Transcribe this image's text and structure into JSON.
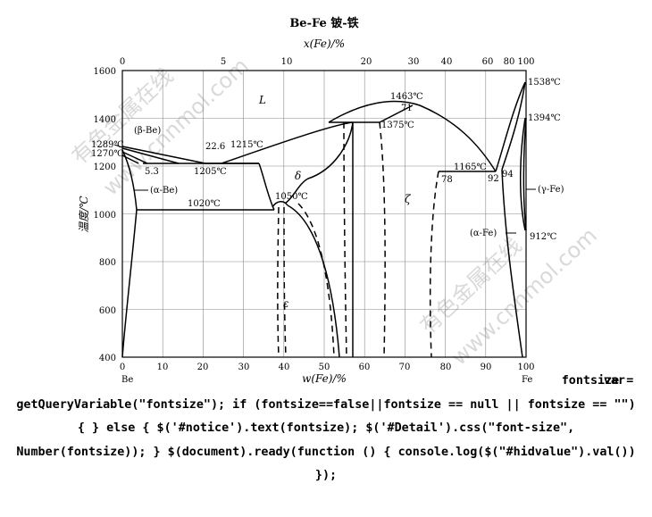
{
  "figure": {
    "title": "Be-Fe  铍-铁",
    "top_axis_title": "x(Fe)/%",
    "bottom_axis_title": "w(Fe)/%",
    "y_axis_title": "温度/℃",
    "left_end_label": "Be",
    "right_end_label": "Fe",
    "y_ticks": [
      "400",
      "600",
      "800",
      "1000",
      "1200",
      "1400",
      "1600"
    ],
    "bottom_ticks": [
      "0",
      "10",
      "20",
      "30",
      "40",
      "50",
      "60",
      "70",
      "80",
      "90",
      "100"
    ],
    "top_ticks": [
      "0",
      "5",
      "10",
      "20",
      "30",
      "40",
      "60",
      "80",
      "100"
    ],
    "phase_labels": {
      "liquid": "L",
      "beta_be": "(β-Be)",
      "alpha_be": "(α-Be)",
      "delta": "δ",
      "epsilon": "ε",
      "zeta": "ζ",
      "gamma_fe": "(γ-Fe)",
      "alpha_fe": "(α-Fe)"
    },
    "annotations": {
      "t1289": "1289℃",
      "t1270": "1270℃",
      "c5_3": "5.3",
      "c22_6": "22.6",
      "t1215": "1215℃",
      "t1205": "1205℃",
      "t1020": "1020℃",
      "t1050": "1050℃",
      "t1463": "1463℃",
      "c71": "71",
      "t1375": "1375℃",
      "t1165": "1165℃",
      "c78": "78",
      "c92": "92",
      "c94": "94",
      "t1538": "1538℃",
      "t1394": "1394℃",
      "t912": "912℃"
    },
    "watermark": {
      "text_1": "有色金属在线",
      "text_2": "www.cnnmol.com"
    }
  },
  "code": {
    "trailing": "var",
    "text": "fontsize = getQueryVariable(\"fontsize\"); if (fontsize==false||fontsize == null || fontsize == \"\") { } else { $('#notice').text(fontsize); $('#Detail').css(\"font-size\", Number(fontsize)); } $(document).ready(function () { console.log($(\"#hidvalue\").val()) });"
  }
}
